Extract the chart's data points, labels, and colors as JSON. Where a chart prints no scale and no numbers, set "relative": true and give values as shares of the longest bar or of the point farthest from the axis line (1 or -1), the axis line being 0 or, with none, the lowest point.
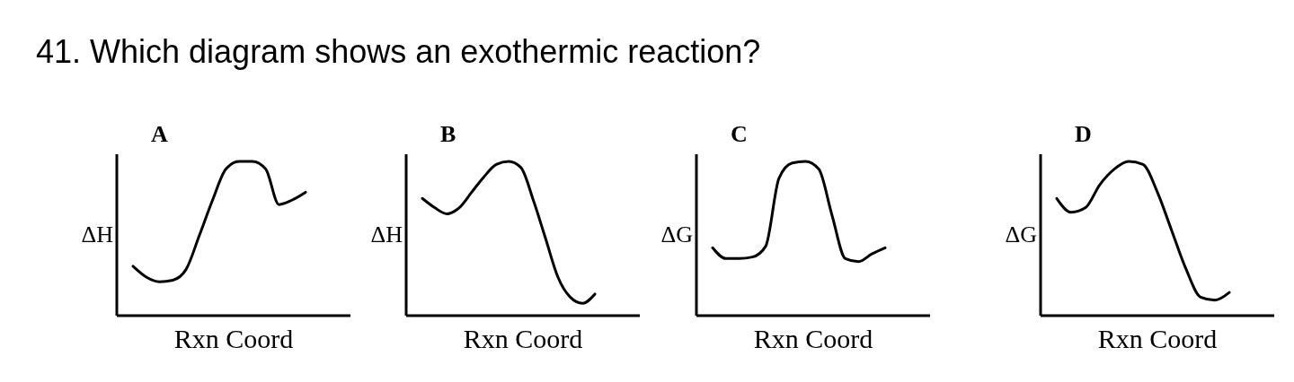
{
  "chart_data": [
    {
      "type": "other",
      "title": "41.   Which diagram shows an exothermic reaction?"
    },
    {
      "type": "line",
      "title": "A",
      "xlabel": "Rxn Coord",
      "ylabel": "ΔH",
      "relative": true,
      "categories": [
        null,
        null,
        null,
        null,
        null,
        null,
        null,
        null,
        null,
        null,
        null,
        null,
        null,
        null
      ],
      "series": [
        {
          "color": "#000000",
          "values": [
            0.32,
            0.25,
            0.22,
            0.23,
            0.3,
            0.52,
            0.75,
            0.95,
            1,
            1,
            0.95,
            0.72,
            0.75,
            0.8
          ]
        }
      ]
    },
    {
      "type": "line",
      "title": "B",
      "xlabel": "Rxn Coord",
      "ylabel": "ΔH",
      "relative": true,
      "categories": [
        null,
        null,
        null,
        null,
        null,
        null,
        null,
        null,
        null,
        null,
        null,
        null,
        null,
        null,
        null
      ],
      "series": [
        {
          "color": "#000000",
          "values": [
            0.76,
            0.7,
            0.66,
            0.7,
            0.8,
            0.9,
            0.98,
            1,
            0.96,
            0.75,
            0.5,
            0.25,
            0.12,
            0.08,
            0.14
          ]
        }
      ]
    },
    {
      "type": "line",
      "title": "C",
      "xlabel": "Rxn Coord",
      "ylabel": "ΔG",
      "relative": true,
      "categories": [
        null,
        null,
        null,
        null,
        null,
        null,
        null,
        null,
        null,
        null,
        null,
        null,
        null,
        null
      ],
      "series": [
        {
          "color": "#000000",
          "values": [
            0.44,
            0.37,
            0.37,
            0.38,
            0.45,
            0.89,
            0.99,
            1,
            0.95,
            0.65,
            0.37,
            0.35,
            0.4,
            0.44
          ]
        }
      ]
    },
    {
      "type": "line",
      "title": "D",
      "xlabel": "Rxn Coord",
      "ylabel": "ΔG",
      "relative": true,
      "categories": [
        null,
        null,
        null,
        null,
        null,
        null,
        null,
        null,
        null,
        null,
        null,
        null,
        null
      ],
      "series": [
        {
          "color": "#000000",
          "values": [
            0.76,
            0.67,
            0.7,
            0.85,
            0.95,
            1,
            0.98,
            0.8,
            0.55,
            0.3,
            0.12,
            0.1,
            0.15
          ]
        }
      ]
    }
  ]
}
